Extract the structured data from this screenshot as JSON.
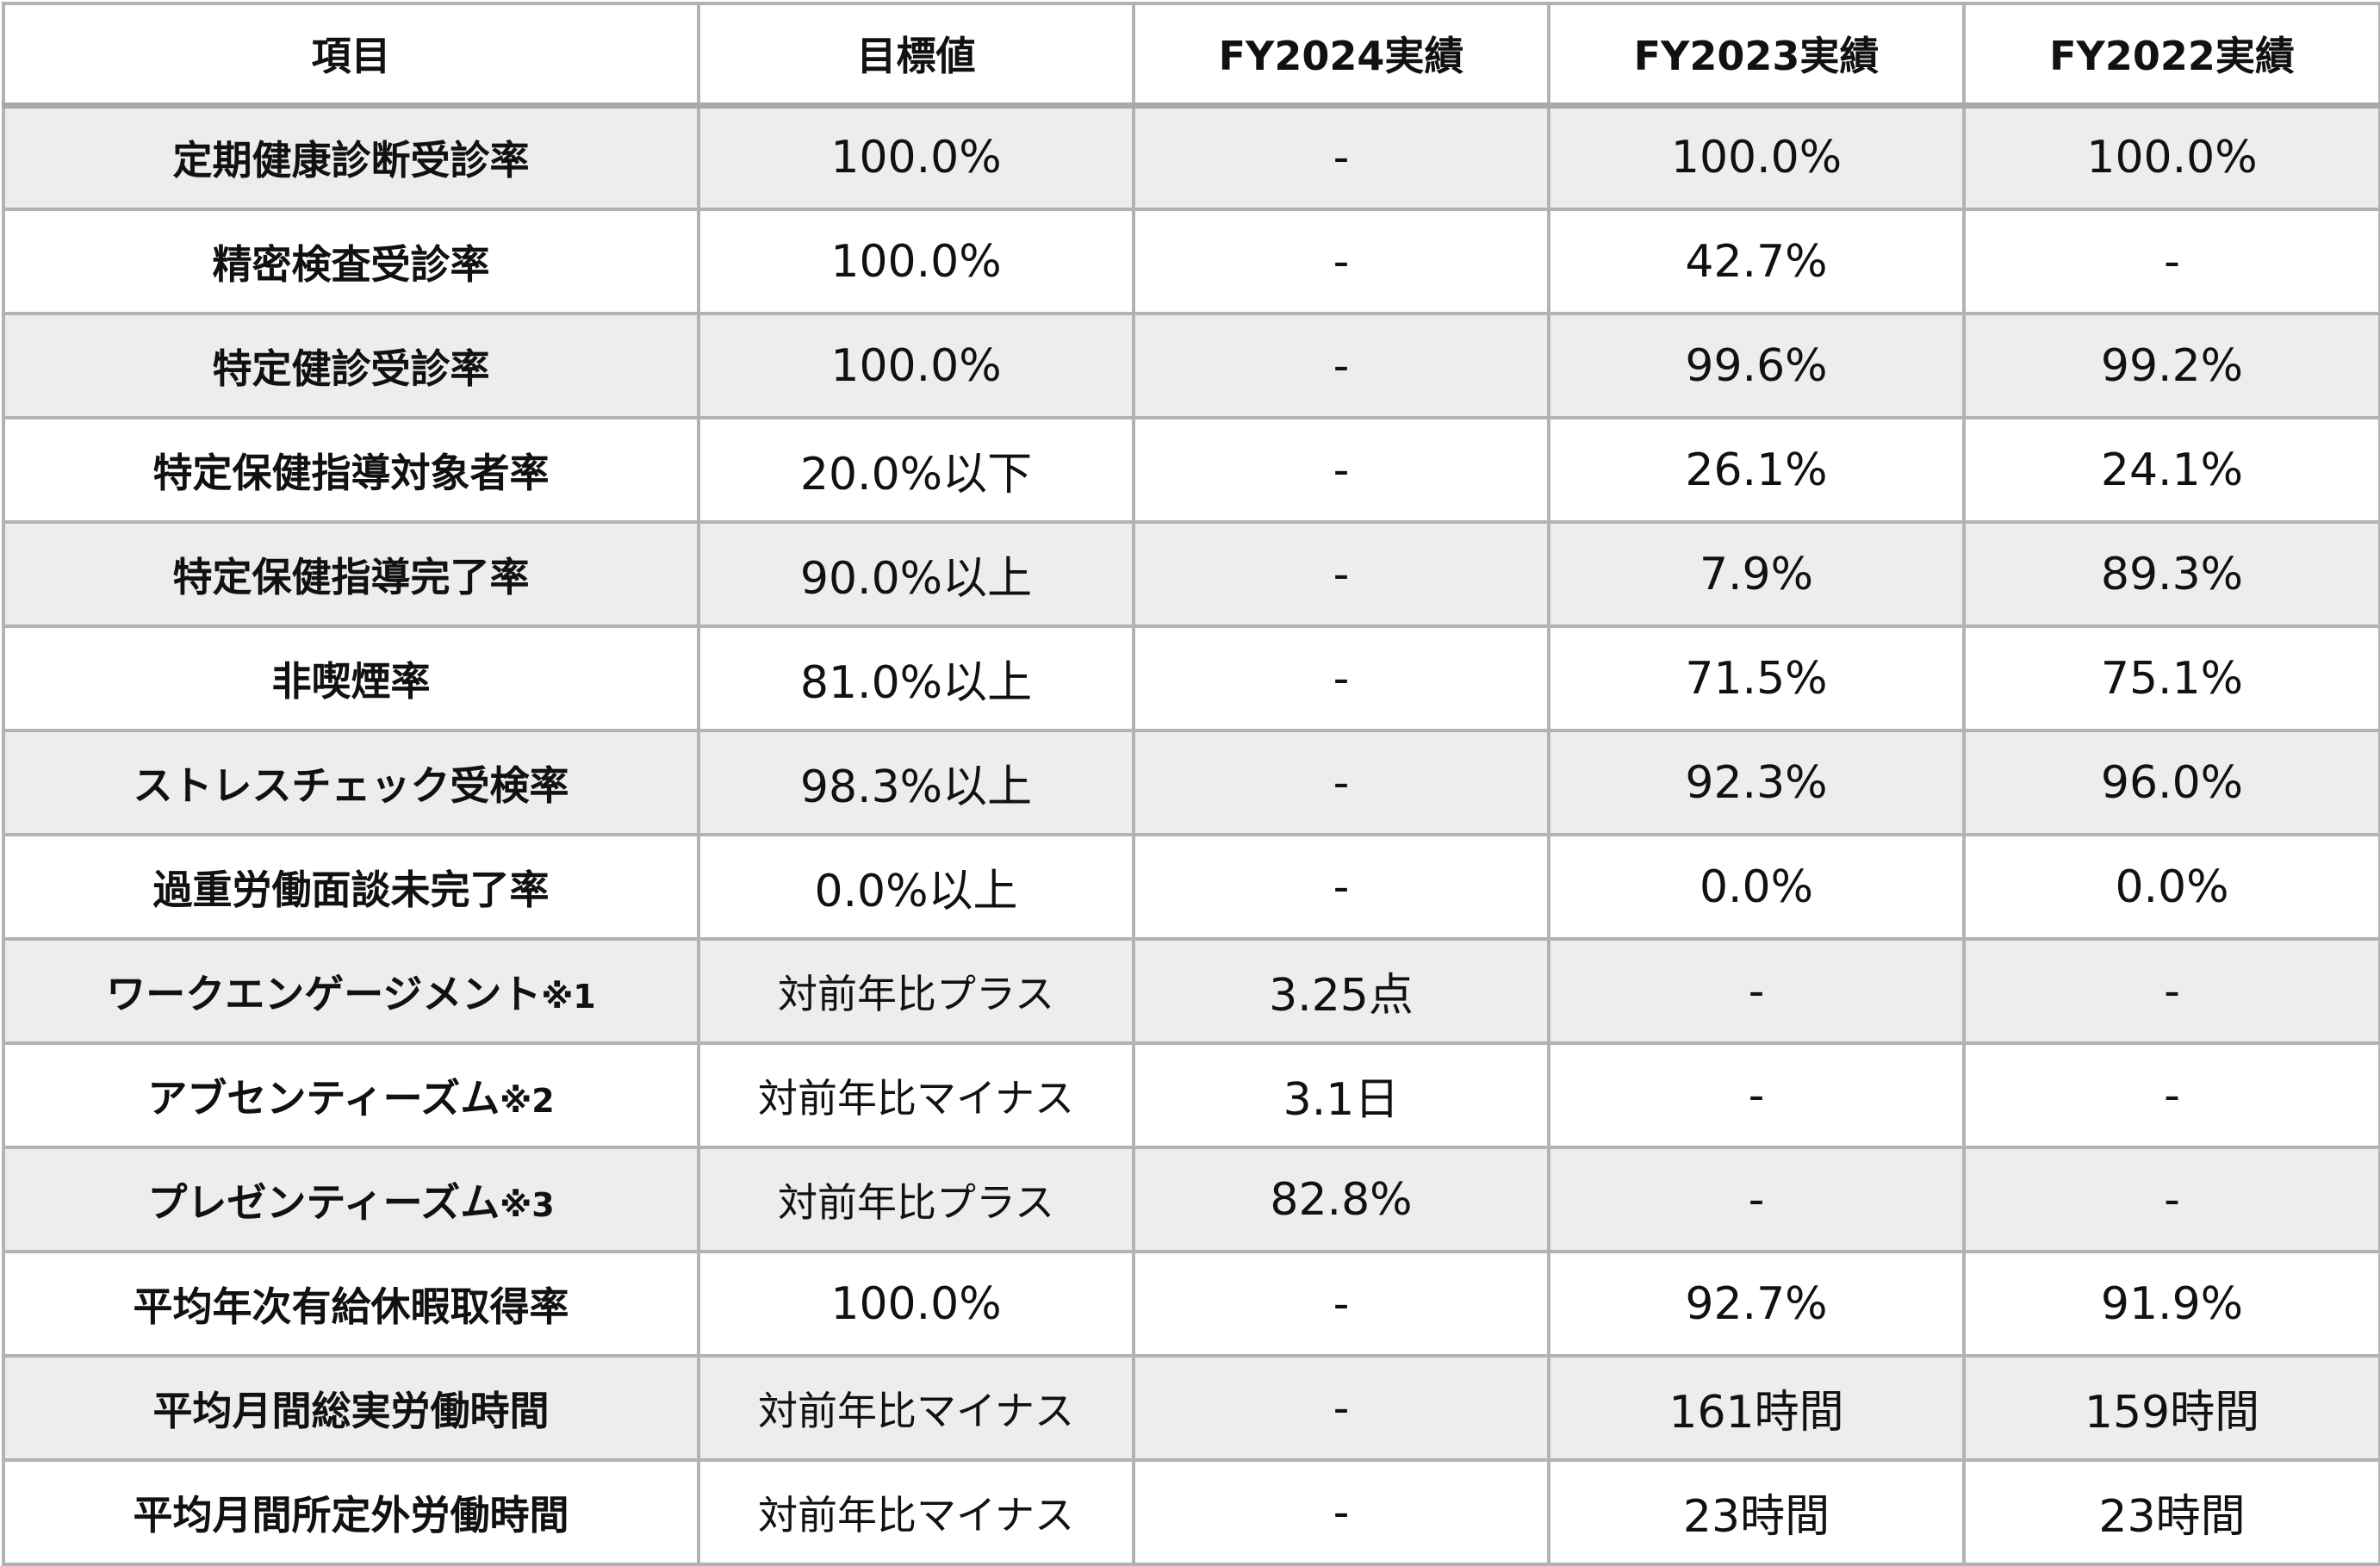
{
  "table": {
    "headers": [
      "項目",
      "目標値",
      "FY2024実績",
      "FY2023実績",
      "FY2022実績"
    ],
    "rows": [
      {
        "item": "定期健康診断受診率",
        "note": "",
        "target": "100.0%",
        "fy2024": "-",
        "fy2023": "100.0%",
        "fy2022": "100.0%"
      },
      {
        "item": "精密検査受診率",
        "note": "",
        "target": "100.0%",
        "fy2024": "-",
        "fy2023": "42.7%",
        "fy2022": "-"
      },
      {
        "item": "特定健診受診率",
        "note": "",
        "target": "100.0%",
        "fy2024": "-",
        "fy2023": "99.6%",
        "fy2022": "99.2%"
      },
      {
        "item": "特定保健指導対象者率",
        "note": "",
        "target": "20.0%以下",
        "fy2024": "-",
        "fy2023": "26.1%",
        "fy2022": "24.1%"
      },
      {
        "item": "特定保健指導完了率",
        "note": "",
        "target": "90.0%以上",
        "fy2024": "-",
        "fy2023": "7.9%",
        "fy2022": "89.3%"
      },
      {
        "item": "非喫煙率",
        "note": "",
        "target": "81.0%以上",
        "fy2024": "-",
        "fy2023": "71.5%",
        "fy2022": "75.1%"
      },
      {
        "item": "ストレスチェック受検率",
        "note": "",
        "target": "98.3%以上",
        "fy2024": "-",
        "fy2023": "92.3%",
        "fy2022": "96.0%"
      },
      {
        "item": "過重労働面談未完了率",
        "note": "",
        "target": "0.0%以上",
        "fy2024": "-",
        "fy2023": "0.0%",
        "fy2022": "0.0%"
      },
      {
        "item": "ワークエンゲージメント",
        "note": "※1",
        "target": "対前年比プラス",
        "fy2024": "3.25点",
        "fy2023": "-",
        "fy2022": "-"
      },
      {
        "item": "アブセンティーズム",
        "note": "※2",
        "target": "対前年比マイナス",
        "fy2024": "3.1日",
        "fy2023": "-",
        "fy2022": "-"
      },
      {
        "item": "プレゼンティーズム",
        "note": "※3",
        "target": "対前年比プラス",
        "fy2024": "82.8%",
        "fy2023": "-",
        "fy2022": "-"
      },
      {
        "item": "平均年次有給休暇取得率",
        "note": "",
        "target": "100.0%",
        "fy2024": "-",
        "fy2023": "92.7%",
        "fy2022": "91.9%"
      },
      {
        "item": "平均月間総実労働時間",
        "note": "",
        "target": "対前年比マイナス",
        "fy2024": "-",
        "fy2023": "161時間",
        "fy2022": "159時間"
      },
      {
        "item": "平均月間所定外労働時間",
        "note": "",
        "target": "対前年比マイナス",
        "fy2024": "-",
        "fy2023": "23時間",
        "fy2022": "23時間"
      }
    ]
  },
  "colors": {
    "row_shade": "#ededed",
    "row_plain": "#ffffff",
    "border": "#b3b3b3",
    "text": "#111111"
  }
}
